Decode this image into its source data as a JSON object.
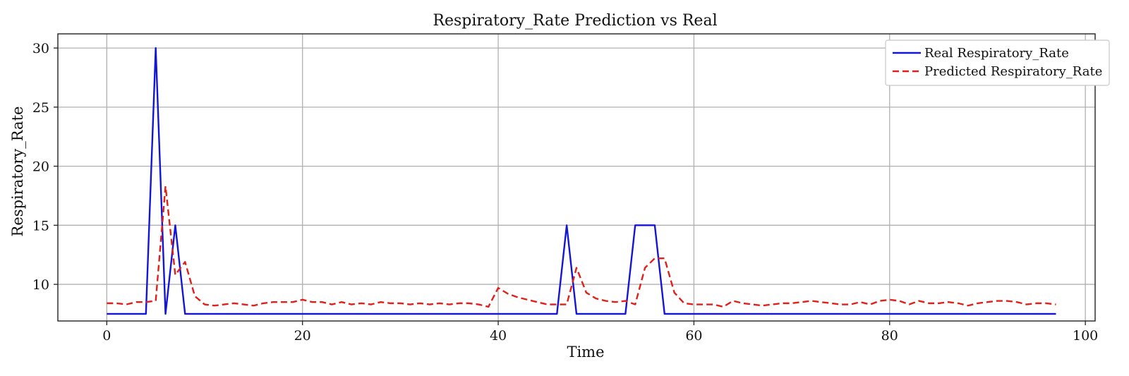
{
  "chart_data": {
    "type": "line",
    "title": "Respiratory_Rate Prediction vs Real",
    "xlabel": "Time",
    "ylabel": "Respiratory_Rate",
    "xlim": [
      -5,
      101
    ],
    "ylim": [
      6.9,
      31.2
    ],
    "xticks": [
      0,
      20,
      40,
      60,
      80,
      100
    ],
    "yticks": [
      10,
      15,
      20,
      25,
      30
    ],
    "grid": true,
    "legend_position": "top-right",
    "x": [
      0,
      1,
      2,
      3,
      4,
      5,
      6,
      7,
      8,
      9,
      10,
      11,
      12,
      13,
      14,
      15,
      16,
      17,
      18,
      19,
      20,
      21,
      22,
      23,
      24,
      25,
      26,
      27,
      28,
      29,
      30,
      31,
      32,
      33,
      34,
      35,
      36,
      37,
      38,
      39,
      40,
      41,
      42,
      43,
      44,
      45,
      46,
      47,
      48,
      49,
      50,
      51,
      52,
      53,
      54,
      55,
      56,
      57,
      58,
      59,
      60,
      61,
      62,
      63,
      64,
      65,
      66,
      67,
      68,
      69,
      70,
      71,
      72,
      73,
      74,
      75,
      76,
      77,
      78,
      79,
      80,
      81,
      82,
      83,
      84,
      85,
      86,
      87,
      88,
      89,
      90,
      91,
      92,
      93,
      94,
      95,
      96,
      97
    ],
    "series": [
      {
        "name": "Real Respiratory_Rate",
        "color": "#1515d6",
        "style": "solid",
        "values": [
          7.5,
          7.5,
          7.5,
          7.5,
          7.5,
          30,
          7.5,
          15,
          7.5,
          7.5,
          7.5,
          7.5,
          7.5,
          7.5,
          7.5,
          7.5,
          7.5,
          7.5,
          7.5,
          7.5,
          7.5,
          7.5,
          7.5,
          7.5,
          7.5,
          7.5,
          7.5,
          7.5,
          7.5,
          7.5,
          7.5,
          7.5,
          7.5,
          7.5,
          7.5,
          7.5,
          7.5,
          7.5,
          7.5,
          7.5,
          7.5,
          7.5,
          7.5,
          7.5,
          7.5,
          7.5,
          7.5,
          15,
          7.5,
          7.5,
          7.5,
          7.5,
          7.5,
          7.5,
          15,
          15,
          15,
          7.5,
          7.5,
          7.5,
          7.5,
          7.5,
          7.5,
          7.5,
          7.5,
          7.5,
          7.5,
          7.5,
          7.5,
          7.5,
          7.5,
          7.5,
          7.5,
          7.5,
          7.5,
          7.5,
          7.5,
          7.5,
          7.5,
          7.5,
          7.5,
          7.5,
          7.5,
          7.5,
          7.5,
          7.5,
          7.5,
          7.5,
          7.5,
          7.5,
          7.5,
          7.5,
          7.5,
          7.5,
          7.5,
          7.5,
          7.5,
          7.5
        ]
      },
      {
        "name": "Predicted Respiratory_Rate",
        "color": "#e0201a",
        "style": "dashed",
        "values": [
          8.4,
          8.4,
          8.3,
          8.5,
          8.5,
          8.6,
          18.3,
          10.8,
          11.9,
          9.0,
          8.3,
          8.2,
          8.3,
          8.4,
          8.3,
          8.2,
          8.4,
          8.5,
          8.5,
          8.5,
          8.7,
          8.5,
          8.5,
          8.3,
          8.5,
          8.3,
          8.4,
          8.3,
          8.5,
          8.4,
          8.4,
          8.3,
          8.4,
          8.3,
          8.4,
          8.3,
          8.4,
          8.4,
          8.3,
          8.1,
          9.7,
          9.2,
          8.9,
          8.7,
          8.5,
          8.3,
          8.3,
          8.3,
          11.4,
          9.3,
          8.8,
          8.6,
          8.5,
          8.6,
          8.3,
          11.4,
          12.2,
          12.2,
          9.3,
          8.4,
          8.3,
          8.3,
          8.3,
          8.1,
          8.6,
          8.4,
          8.3,
          8.2,
          8.3,
          8.4,
          8.4,
          8.5,
          8.6,
          8.5,
          8.4,
          8.3,
          8.3,
          8.5,
          8.3,
          8.6,
          8.7,
          8.6,
          8.3,
          8.6,
          8.4,
          8.4,
          8.5,
          8.4,
          8.2,
          8.4,
          8.5,
          8.6,
          8.6,
          8.5,
          8.3,
          8.4,
          8.4,
          8.3
        ]
      }
    ]
  }
}
